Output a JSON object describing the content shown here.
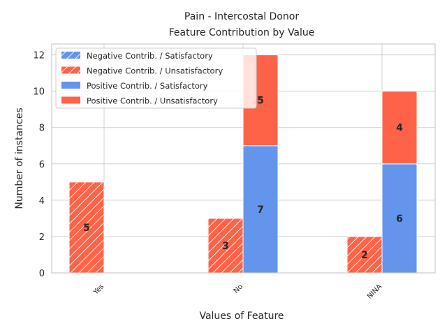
{
  "chart_data": {
    "type": "bar",
    "title": "Pain - Intercostal Donor",
    "subtitle": "Feature Contribution by Value",
    "xlabel": "Values of Feature",
    "ylabel": "Number of instances",
    "categories": [
      "Yes",
      "No",
      "NINA"
    ],
    "ylim": [
      0,
      12.6
    ],
    "yticks": [
      0,
      2,
      4,
      6,
      8,
      10,
      12
    ],
    "grid": true,
    "legend_position": "top-left",
    "stacks": [
      {
        "name": "Negative Contrib.",
        "hatched": true,
        "series": [
          {
            "name": "Negative Contrib. / Satisfactory",
            "values": [
              0,
              0,
              0
            ],
            "color": "#6495ed"
          },
          {
            "name": "Negative Contrib. / Unsatisfactory",
            "values": [
              5,
              3,
              2
            ],
            "color": "#ff6347"
          }
        ]
      },
      {
        "name": "Positive Contrib.",
        "hatched": false,
        "series": [
          {
            "name": "Positive Contrib. / Satisfactory",
            "values": [
              0,
              7,
              6
            ],
            "color": "#6495ed"
          },
          {
            "name": "Positive Contrib. / Unsatisfactory",
            "values": [
              0,
              5,
              4
            ],
            "color": "#ff6347"
          }
        ]
      }
    ]
  }
}
